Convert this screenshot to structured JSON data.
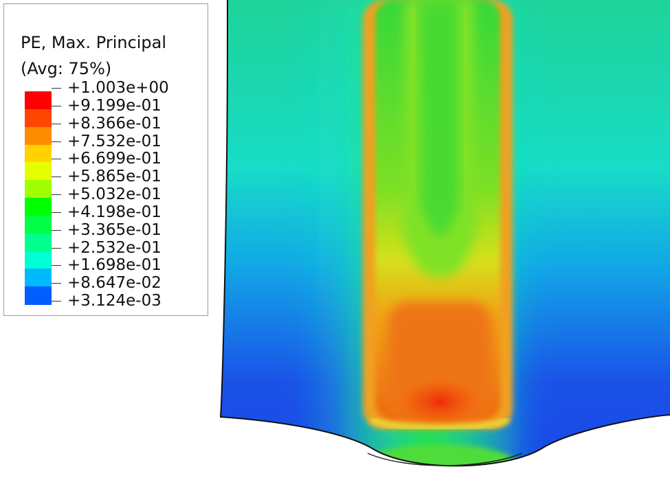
{
  "legend": {
    "title": "PE, Max. Principal",
    "subtitle": "(Avg: 75%)",
    "labels": [
      "+1.003e+00",
      "+9.199e-01",
      "+8.366e-01",
      "+7.532e-01",
      "+6.699e-01",
      "+5.865e-01",
      "+5.032e-01",
      "+4.198e-01",
      "+3.365e-01",
      "+2.532e-01",
      "+1.698e-01",
      "+8.647e-02",
      "+3.124e-03"
    ],
    "colors": [
      "#ff0000",
      "#ff4600",
      "#ff8c00",
      "#ffd200",
      "#e6ff00",
      "#a0ff00",
      "#00ff00",
      "#00ff46",
      "#00ff8c",
      "#00ffd2",
      "#00b9ff",
      "#005eff",
      "#0000ff"
    ]
  }
}
